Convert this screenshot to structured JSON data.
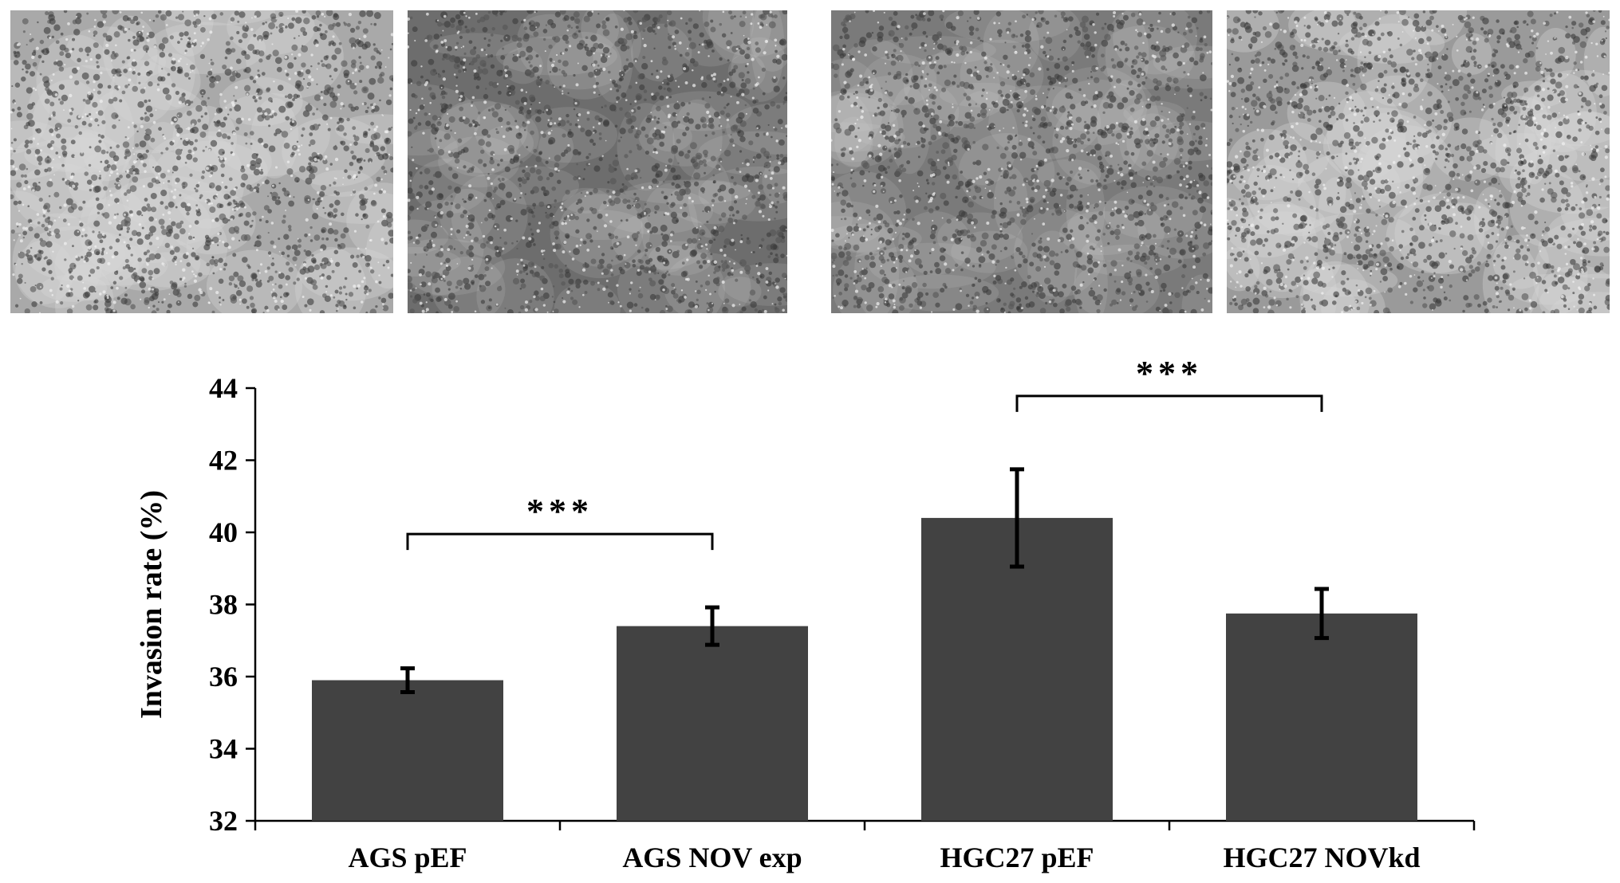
{
  "micrographs": [
    {
      "name": "AGS pEF"
    },
    {
      "name": "AGS NOV exp"
    },
    {
      "name": "HGC27 pEF"
    },
    {
      "name": "HGC27 NOVkd"
    }
  ],
  "chart_data": {
    "type": "bar",
    "categories": [
      "AGS pEF",
      "AGS NOV exp",
      "HGC27 pEF",
      "HGC27 NOVkd"
    ],
    "values": [
      35.9,
      37.4,
      40.4,
      37.75
    ],
    "errors": [
      0.33,
      0.52,
      1.35,
      0.68
    ],
    "ylabel": "Invasion rate (%)",
    "xlabel": "",
    "ylim": [
      32,
      44
    ],
    "yticks": [
      32,
      34,
      36,
      38,
      40,
      42,
      44
    ],
    "bar_color": "#424242",
    "significance": [
      {
        "from": 0,
        "to": 1,
        "label": "***"
      },
      {
        "from": 2,
        "to": 3,
        "label": "***"
      }
    ]
  }
}
